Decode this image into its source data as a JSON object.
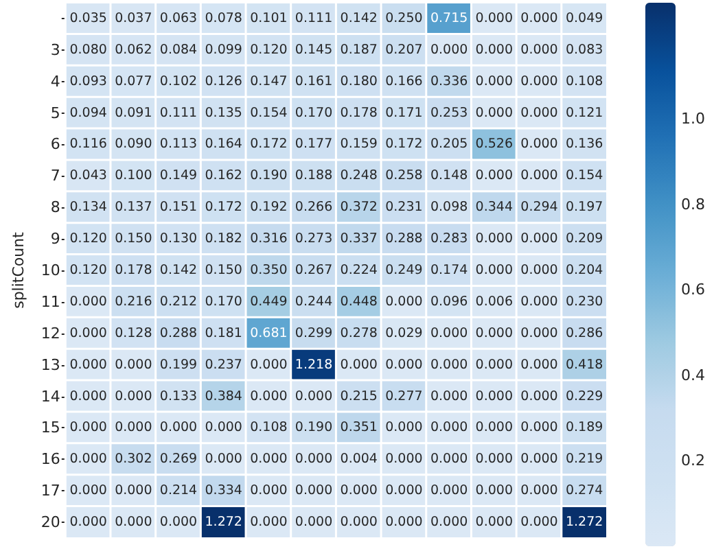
{
  "chart_data": {
    "type": "heatmap",
    "ylabel": "splitCount",
    "categories": [
      null,
      null,
      null,
      null,
      null,
      null,
      null,
      null,
      null,
      null,
      null,
      null
    ],
    "y_categories": [
      null,
      "3",
      "4",
      "5",
      "6",
      "7",
      "8",
      "9",
      "10",
      "11",
      "12",
      "13",
      "14",
      "15",
      "16",
      "17",
      "20"
    ],
    "cells": [
      [
        0.035,
        0.037,
        0.063,
        0.078,
        0.101,
        0.111,
        0.142,
        0.25,
        0.715,
        0,
        0,
        0.049
      ],
      [
        0.08,
        0.062,
        0.084,
        0.099,
        0.12,
        0.145,
        0.187,
        0.207,
        0,
        0,
        0,
        0.083
      ],
      [
        0.093,
        0.077,
        0.102,
        0.126,
        0.147,
        0.161,
        0.18,
        0.166,
        0.336,
        0,
        0,
        0.108
      ],
      [
        0.094,
        0.091,
        0.111,
        0.135,
        0.154,
        0.17,
        0.178,
        0.171,
        0.253,
        0,
        0,
        0.121
      ],
      [
        0.116,
        0.09,
        0.113,
        0.164,
        0.172,
        0.177,
        0.159,
        0.172,
        0.205,
        0.526,
        0,
        0.136
      ],
      [
        0.043,
        0.1,
        0.149,
        0.162,
        0.19,
        0.188,
        0.248,
        0.258,
        0.148,
        0,
        0,
        0.154
      ],
      [
        0.134,
        0.137,
        0.151,
        0.172,
        0.192,
        0.266,
        0.372,
        0.231,
        0.098,
        0.344,
        0.294,
        0.197
      ],
      [
        0.12,
        0.15,
        0.13,
        0.182,
        0.316,
        0.273,
        0.337,
        0.288,
        0.283,
        0,
        0,
        0.209
      ],
      [
        0.12,
        0.178,
        0.142,
        0.15,
        0.35,
        0.267,
        0.224,
        0.249,
        0.174,
        0,
        0,
        0.204
      ],
      [
        0,
        0.216,
        0.212,
        0.17,
        0.449,
        0.244,
        0.448,
        0,
        0.096,
        0.006,
        0,
        0.23
      ],
      [
        0,
        0.128,
        0.288,
        0.181,
        0.681,
        0.299,
        0.278,
        0.029,
        0,
        0,
        0,
        0.286
      ],
      [
        0,
        0,
        0.199,
        0.237,
        0,
        1.218,
        0,
        0,
        0,
        0,
        0,
        0.418
      ],
      [
        0,
        0,
        0.133,
        0.384,
        0,
        0,
        0.215,
        0.277,
        0,
        0,
        0,
        0.229
      ],
      [
        0,
        0,
        0,
        0,
        0.108,
        0.19,
        0.351,
        0,
        0,
        0,
        0,
        0.189
      ],
      [
        0,
        0.302,
        0.269,
        0,
        0,
        0,
        0.004,
        0,
        0,
        0,
        0,
        0.219
      ],
      [
        0,
        0,
        0.214,
        0.334,
        0,
        0,
        0,
        0,
        0,
        0,
        0,
        0.274
      ],
      [
        0,
        0,
        0,
        1.272,
        0,
        0,
        0,
        0,
        0,
        0,
        0,
        1.272
      ]
    ],
    "cell_labels": [
      [
        "0.035",
        "0.037",
        "0.063",
        "0.078",
        "0.101",
        "0.111",
        "0.142",
        "0.250",
        "0.715",
        "0.000",
        "0.000",
        "0.049"
      ],
      [
        "0.080",
        "0.062",
        "0.084",
        "0.099",
        "0.120",
        "0.145",
        "0.187",
        "0.207",
        "0.000",
        "0.000",
        "0.000",
        "0.083"
      ],
      [
        "0.093",
        "0.077",
        "0.102",
        "0.126",
        "0.147",
        "0.161",
        "0.180",
        "0.166",
        "0.336",
        "0.000",
        "0.000",
        "0.108"
      ],
      [
        "0.094",
        "0.091",
        "0.111",
        "0.135",
        "0.154",
        "0.170",
        "0.178",
        "0.171",
        "0.253",
        "0.000",
        "0.000",
        "0.121"
      ],
      [
        "0.116",
        "0.090",
        "0.113",
        "0.164",
        "0.172",
        "0.177",
        "0.159",
        "0.172",
        "0.205",
        "0.526",
        "0.000",
        "0.136"
      ],
      [
        "0.043",
        "0.100",
        "0.149",
        "0.162",
        "0.190",
        "0.188",
        "0.248",
        "0.258",
        "0.148",
        "0.000",
        "0.000",
        "0.154"
      ],
      [
        "0.134",
        "0.137",
        "0.151",
        "0.172",
        "0.192",
        "0.266",
        "0.372",
        "0.231",
        "0.098",
        "0.344",
        "0.294",
        "0.197"
      ],
      [
        "0.120",
        "0.150",
        "0.130",
        "0.182",
        "0.316",
        "0.273",
        "0.337",
        "0.288",
        "0.283",
        "0.000",
        "0.000",
        "0.209"
      ],
      [
        "0.120",
        "0.178",
        "0.142",
        "0.150",
        "0.350",
        "0.267",
        "0.224",
        "0.249",
        "0.174",
        "0.000",
        "0.000",
        "0.204"
      ],
      [
        "0.000",
        "0.216",
        "0.212",
        "0.170",
        "0.449",
        "0.244",
        "0.448",
        "0.000",
        "0.096",
        "0.006",
        "0.000",
        "0.230"
      ],
      [
        "0.000",
        "0.128",
        "0.288",
        "0.181",
        "0.681",
        "0.299",
        "0.278",
        "0.029",
        "0.000",
        "0.000",
        "0.000",
        "0.286"
      ],
      [
        "0.000",
        "0.000",
        "0.199",
        "0.237",
        "0.000",
        "1.218",
        "0.000",
        "0.000",
        "0.000",
        "0.000",
        "0.000",
        "0.418"
      ],
      [
        "0.000",
        "0.000",
        "0.133",
        "0.384",
        "0.000",
        "0.000",
        "0.215",
        "0.277",
        "0.000",
        "0.000",
        "0.000",
        "0.229"
      ],
      [
        "0.000",
        "0.000",
        "0.000",
        "0.000",
        "0.108",
        "0.190",
        "0.351",
        "0.000",
        "0.000",
        "0.000",
        "0.000",
        "0.189"
      ],
      [
        "0.000",
        "0.302",
        "0.269",
        "0.000",
        "0.000",
        "0.000",
        "0.004",
        "0.000",
        "0.000",
        "0.000",
        "0.000",
        "0.219"
      ],
      [
        "0.000",
        "0.000",
        "0.214",
        "0.334",
        "0.000",
        "0.000",
        "0.000",
        "0.000",
        "0.000",
        "0.000",
        "0.000",
        "0.274"
      ],
      [
        "0.000",
        "0.000",
        "0.000",
        "1.272",
        "0.000",
        "0.000",
        "0.000",
        "0.000",
        "0.000",
        "0.000",
        "0.000",
        "1.272"
      ]
    ],
    "clim": [
      0,
      1.272
    ],
    "cticks": [
      0.2,
      0.4,
      0.6,
      0.8,
      {
        "value": 1,
        "label": "1.0"
      }
    ]
  }
}
